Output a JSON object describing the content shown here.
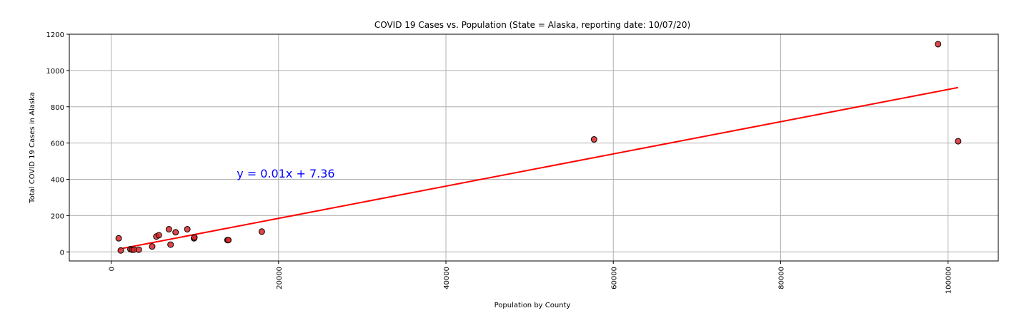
{
  "chart_data": {
    "type": "scatter",
    "title": "COVID 19 Cases vs. Population (State = Alaska, reporting date: 10/07/20)",
    "xlabel": "Population by County",
    "ylabel": "Total COVID 19 Cases in Alaska",
    "xlim": [
      -5000,
      106000
    ],
    "ylim": [
      -50,
      1200
    ],
    "x_ticks": [
      {
        "value": 0,
        "label": "0"
      },
      {
        "value": 20000,
        "label": "20000"
      },
      {
        "value": 40000,
        "label": "40000"
      },
      {
        "value": 60000,
        "label": "60000"
      },
      {
        "value": 80000,
        "label": "80000"
      },
      {
        "value": 100000,
        "label": "100000"
      }
    ],
    "y_ticks": [
      {
        "value": 0,
        "label": "0"
      },
      {
        "value": 200,
        "label": "200"
      },
      {
        "value": 400,
        "label": "400"
      },
      {
        "value": 600,
        "label": "600"
      },
      {
        "value": 800,
        "label": "800"
      },
      {
        "value": 1000,
        "label": "1000"
      },
      {
        "value": 1200,
        "label": "1200"
      }
    ],
    "grid": true,
    "points": [
      {
        "x": 900,
        "y": 75
      },
      {
        "x": 1150,
        "y": 8
      },
      {
        "x": 2300,
        "y": 15
      },
      {
        "x": 2500,
        "y": 12
      },
      {
        "x": 2700,
        "y": 12
      },
      {
        "x": 3300,
        "y": 12
      },
      {
        "x": 4900,
        "y": 30
      },
      {
        "x": 5400,
        "y": 85
      },
      {
        "x": 5700,
        "y": 92
      },
      {
        "x": 6900,
        "y": 125
      },
      {
        "x": 7100,
        "y": 40
      },
      {
        "x": 7700,
        "y": 108
      },
      {
        "x": 9100,
        "y": 125
      },
      {
        "x": 9900,
        "y": 75
      },
      {
        "x": 9950,
        "y": 80
      },
      {
        "x": 13900,
        "y": 65
      },
      {
        "x": 14000,
        "y": 65
      },
      {
        "x": 18000,
        "y": 112
      },
      {
        "x": 57700,
        "y": 620
      },
      {
        "x": 98800,
        "y": 1145
      },
      {
        "x": 101200,
        "y": 610
      }
    ],
    "regression": {
      "slope": 0.00888,
      "intercept": 7.36,
      "x_range": [
        900,
        101200
      ],
      "equation_label": "y = 0.01x + 7.36",
      "label_position": {
        "x": 15000,
        "y": 410
      }
    },
    "colors": {
      "point_fill": "#d62728",
      "point_edge": "#000000",
      "regression_line": "#ff0000",
      "equation_text": "#0000ff",
      "grid": "#b0b0b0",
      "axis": "#000000"
    }
  }
}
